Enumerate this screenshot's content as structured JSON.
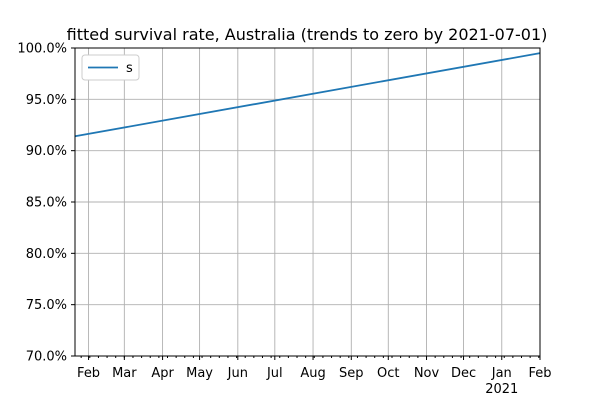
{
  "chart_data": {
    "type": "line",
    "title": "fitted survival rate, Australia (trends to zero by 2021-07-01)",
    "xlabel": "",
    "ylabel": "",
    "ylim": [
      0.7,
      1.0
    ],
    "xlim": [
      "2020-01-21",
      "2021-02-01"
    ],
    "yticks": [
      0.7,
      0.75,
      0.8,
      0.85,
      0.9,
      0.95,
      1.0
    ],
    "ytick_labels": [
      "70.0%",
      "75.0%",
      "80.0%",
      "85.0%",
      "90.0%",
      "95.0%",
      "100.0%"
    ],
    "xticks": [
      {
        "date": "2020-02-01",
        "label": "Feb"
      },
      {
        "date": "2020-03-01",
        "label": "Mar"
      },
      {
        "date": "2020-04-01",
        "label": "Apr"
      },
      {
        "date": "2020-05-01",
        "label": "May"
      },
      {
        "date": "2020-06-01",
        "label": "Jun"
      },
      {
        "date": "2020-07-01",
        "label": "Jul"
      },
      {
        "date": "2020-08-01",
        "label": "Aug"
      },
      {
        "date": "2020-09-01",
        "label": "Sep"
      },
      {
        "date": "2020-10-01",
        "label": "Oct"
      },
      {
        "date": "2020-11-01",
        "label": "Nov"
      },
      {
        "date": "2020-12-01",
        "label": "Dec"
      },
      {
        "date": "2021-01-01",
        "label": "Jan",
        "sublabel": "2021"
      },
      {
        "date": "2021-02-01",
        "label": "Feb"
      }
    ],
    "grid": true,
    "legend_position": "top-left",
    "series": [
      {
        "name": "s",
        "color": "#1f77b4",
        "x": [
          "2020-01-21",
          "2021-02-01"
        ],
        "y": [
          0.914,
          0.995
        ]
      }
    ]
  }
}
